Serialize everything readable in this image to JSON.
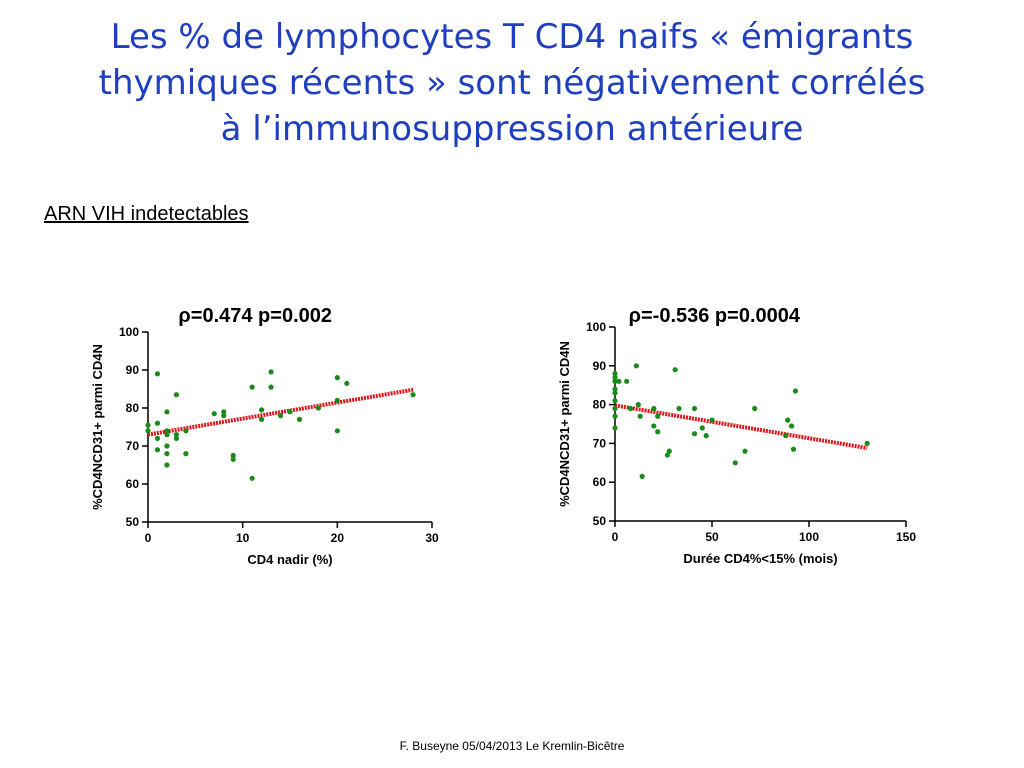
{
  "slide": {
    "title_lines": [
      "Les % de lymphocytes T CD4 naifs « émigrants",
      "thymiques récents » sont négativement corrélés",
      "à l’immunosuppression antérieure"
    ],
    "subtitle": "ARN VIH indetectables",
    "footer": "F. Buseyne  05/04/2013  Le Kremlin-Bicêtre"
  },
  "colors": {
    "title": "#1f3fbf",
    "points": "#1a8a1a",
    "regression": "#e0141a",
    "axis": "#000000"
  },
  "chart_data": [
    {
      "type": "scatter",
      "annotation": "ρ=0.474 p=0.002",
      "xlabel": "CD4 nadir (%)",
      "ylabel": "%CD4NCD31+ parmi CD4N",
      "xlim": [
        0,
        30
      ],
      "ylim": [
        50,
        100
      ],
      "xticks": [
        0,
        10,
        20,
        30
      ],
      "yticks": [
        50,
        60,
        70,
        80,
        90,
        100
      ],
      "grid": false,
      "points": [
        [
          0,
          74
        ],
        [
          0,
          75.5
        ],
        [
          1,
          89
        ],
        [
          1,
          76
        ],
        [
          1,
          72
        ],
        [
          1,
          69
        ],
        [
          2,
          79
        ],
        [
          2,
          74
        ],
        [
          2,
          73
        ],
        [
          2,
          70
        ],
        [
          2,
          68
        ],
        [
          2,
          65
        ],
        [
          3,
          83.5
        ],
        [
          3,
          73
        ],
        [
          3,
          72
        ],
        [
          4,
          74
        ],
        [
          4,
          68
        ],
        [
          7,
          78.5
        ],
        [
          8,
          79
        ],
        [
          8,
          78
        ],
        [
          9,
          67.5
        ],
        [
          9,
          66.5
        ],
        [
          11,
          85.5
        ],
        [
          11,
          61.5
        ],
        [
          12,
          79.5
        ],
        [
          12,
          77
        ],
        [
          13,
          89.5
        ],
        [
          13,
          85.5
        ],
        [
          14,
          78
        ],
        [
          15,
          79
        ],
        [
          16,
          77
        ],
        [
          18,
          80
        ],
        [
          20,
          88
        ],
        [
          20,
          82
        ],
        [
          20,
          74
        ],
        [
          21,
          86.5
        ],
        [
          28,
          83.5
        ]
      ],
      "regression": {
        "x": [
          0,
          28
        ],
        "y": [
          73,
          84.8
        ]
      }
    },
    {
      "type": "scatter",
      "annotation": "ρ=-0.536 p=0.0004",
      "xlabel": "Durée CD4%<15% (mois)",
      "ylabel": "%CD4NCD31+ parmi CD4N",
      "xlim": [
        0,
        150
      ],
      "ylim": [
        50,
        100
      ],
      "xticks": [
        0,
        50,
        100,
        150
      ],
      "yticks": [
        50,
        60,
        70,
        80,
        90,
        100
      ],
      "grid": false,
      "points": [
        [
          0,
          88
        ],
        [
          0,
          87
        ],
        [
          0,
          86
        ],
        [
          0,
          84
        ],
        [
          0,
          83
        ],
        [
          0,
          81
        ],
        [
          0,
          79
        ],
        [
          0,
          77
        ],
        [
          0,
          74
        ],
        [
          2,
          86
        ],
        [
          6,
          86
        ],
        [
          8,
          79
        ],
        [
          11,
          90
        ],
        [
          12,
          80
        ],
        [
          13,
          77
        ],
        [
          14,
          61.5
        ],
        [
          20,
          79
        ],
        [
          20,
          74.5
        ],
        [
          22,
          73
        ],
        [
          22,
          77
        ],
        [
          27,
          67
        ],
        [
          28,
          68
        ],
        [
          31,
          89
        ],
        [
          33,
          79
        ],
        [
          41,
          79
        ],
        [
          41,
          72.5
        ],
        [
          45,
          74
        ],
        [
          47,
          72
        ],
        [
          50,
          76
        ],
        [
          62,
          65
        ],
        [
          67,
          68
        ],
        [
          72,
          79
        ],
        [
          88,
          72
        ],
        [
          89,
          76
        ],
        [
          91,
          74.5
        ],
        [
          92,
          68.5
        ],
        [
          93,
          83.5
        ],
        [
          130,
          70
        ]
      ],
      "regression": {
        "x": [
          0,
          130
        ],
        "y": [
          79.8,
          68.8
        ]
      }
    }
  ]
}
